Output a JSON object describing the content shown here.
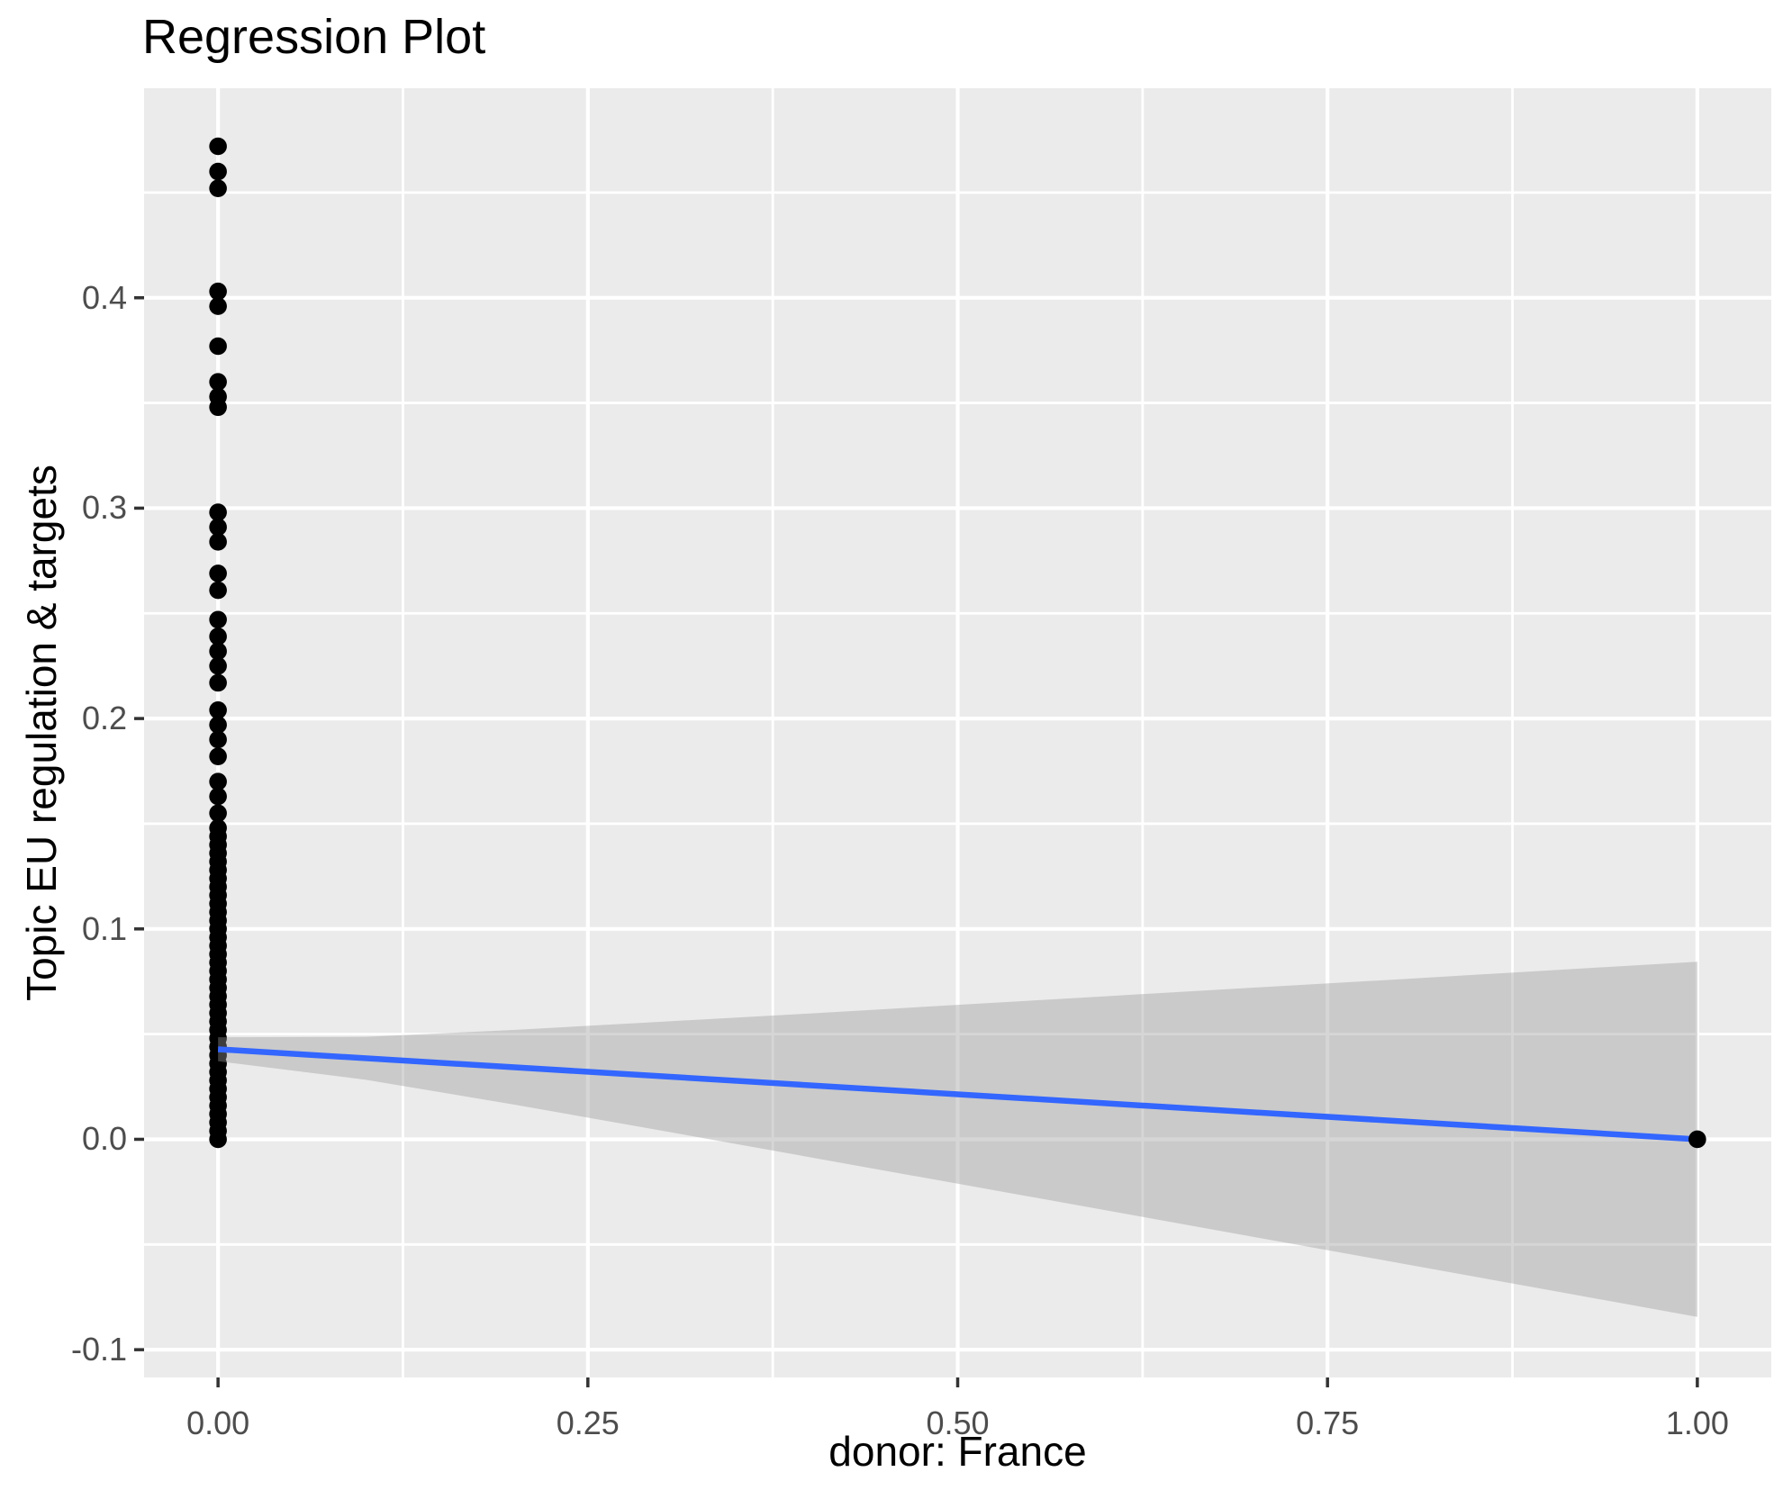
{
  "title": "Regression Plot",
  "chart_data": {
    "type": "scatter",
    "title": "Regression Plot",
    "xlabel": "donor: France",
    "ylabel": "Topic EU regulation & targets",
    "xlim": [
      -0.05,
      1.05
    ],
    "ylim": [
      -0.1132,
      0.4996
    ],
    "x_ticks": {
      "values": [
        0.0,
        0.25,
        0.5,
        0.75,
        1.0
      ],
      "labels": [
        "0.00",
        "0.25",
        "0.50",
        "0.75",
        "1.00"
      ]
    },
    "y_ticks": {
      "values": [
        -0.1,
        0.0,
        0.1,
        0.2,
        0.3,
        0.4
      ],
      "labels": [
        "-0.1",
        "0.0",
        "0.1",
        "0.2",
        "0.3",
        "0.4"
      ]
    },
    "x_minor_breaks": [
      0.125,
      0.375,
      0.625,
      0.875
    ],
    "y_minor_breaks": [
      -0.05,
      0.05,
      0.15,
      0.25,
      0.35,
      0.45
    ],
    "grid": "white major and minor gridlines on gray panel",
    "legend": "none",
    "series": [
      {
        "name": "observations-x0",
        "type": "points",
        "x": 0.0,
        "y": [
          0.472,
          0.46,
          0.452,
          0.403,
          0.396,
          0.377,
          0.36,
          0.353,
          0.348,
          0.298,
          0.291,
          0.284,
          0.269,
          0.261,
          0.247,
          0.239,
          0.232,
          0.225,
          0.217,
          0.204,
          0.197,
          0.19,
          0.182,
          0.17,
          0.163,
          0.155,
          0.148,
          0.144,
          0.14,
          0.136,
          0.132,
          0.128,
          0.124,
          0.12,
          0.116,
          0.112,
          0.108,
          0.104,
          0.1,
          0.096,
          0.092,
          0.088,
          0.084,
          0.08,
          0.076,
          0.072,
          0.068,
          0.064,
          0.06,
          0.056,
          0.052,
          0.048,
          0.044,
          0.04,
          0.036,
          0.032,
          0.028,
          0.024,
          0.02,
          0.016,
          0.012,
          0.008,
          0.004,
          0.0
        ]
      },
      {
        "name": "observation-x1",
        "type": "points",
        "x": 1.0,
        "y": [
          0.0
        ]
      },
      {
        "name": "regression-line",
        "type": "line",
        "x": [
          0.0,
          1.0
        ],
        "y": [
          0.0428,
          0.0
        ]
      },
      {
        "name": "confidence-band",
        "type": "ribbon",
        "x": [
          0.0,
          0.1,
          0.2,
          0.3,
          0.4,
          0.5,
          0.6,
          0.7,
          0.8,
          0.9,
          1.0
        ],
        "upper": [
          0.0485,
          0.0487,
          0.052,
          0.0559,
          0.0598,
          0.0639,
          0.068,
          0.0721,
          0.0761,
          0.0803,
          0.0844
        ],
        "lower": [
          0.0371,
          0.0283,
          0.0165,
          0.0041,
          -0.0085,
          -0.0211,
          -0.0337,
          -0.0464,
          -0.059,
          -0.0717,
          -0.0844
        ]
      }
    ],
    "colors": {
      "point": "#000000",
      "line": "#3366FF",
      "ribbon": "#999999",
      "ribbon_alpha": 0.4,
      "panel_background": "#EBEBEB",
      "gridline": "#FFFFFF",
      "tick_label": "#4D4D4D",
      "tick_mark": "#333333",
      "text": "#000000",
      "background": "#FFFFFF"
    }
  }
}
